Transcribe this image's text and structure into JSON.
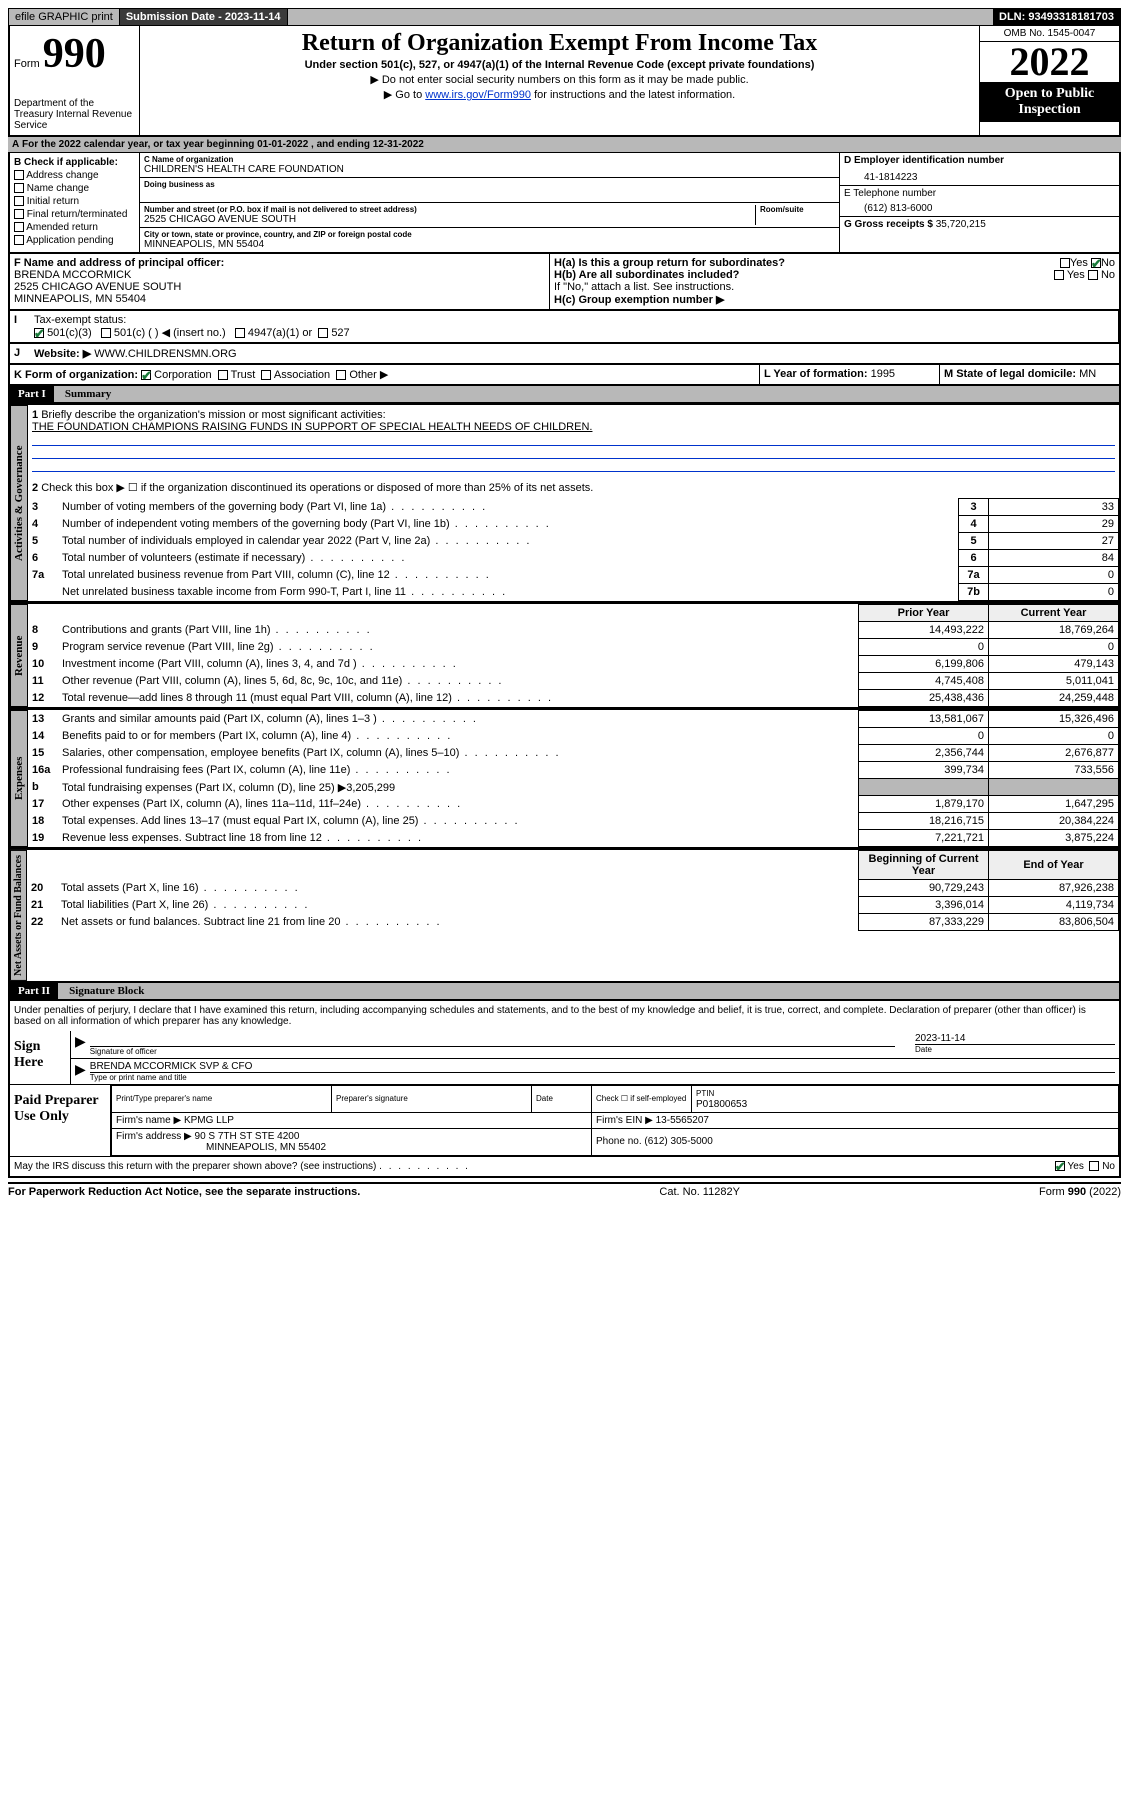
{
  "topbar": {
    "efile": "efile GRAPHIC print",
    "submission_label": "Submission Date - 2023-11-14",
    "dln": "DLN: 93493318181703"
  },
  "header": {
    "form_word": "Form",
    "form_num": "990",
    "title": "Return of Organization Exempt From Income Tax",
    "subtitle": "Under section 501(c), 527, or 4947(a)(1) of the Internal Revenue Code (except private foundations)",
    "note1": "▶ Do not enter social security numbers on this form as it may be made public.",
    "note2_prefix": "▶ Go to ",
    "note2_link": "www.irs.gov/Form990",
    "note2_suffix": " for instructions and the latest information.",
    "omb": "OMB No. 1545-0047",
    "year": "2022",
    "open": "Open to Public Inspection",
    "dept": "Department of the Treasury Internal Revenue Service"
  },
  "lineA": "For the 2022 calendar year, or tax year beginning 01-01-2022   , and ending 12-31-2022",
  "sectionB": {
    "label": "B Check if applicable:",
    "opts": [
      "Address change",
      "Name change",
      "Initial return",
      "Final return/terminated",
      "Amended return",
      "Application pending"
    ]
  },
  "sectionC": {
    "name_label": "C Name of organization",
    "name": "CHILDREN'S HEALTH CARE FOUNDATION",
    "dba_label": "Doing business as",
    "street_label": "Number and street (or P.O. box if mail is not delivered to street address)",
    "room_label": "Room/suite",
    "street": "2525 CHICAGO AVENUE SOUTH",
    "city_label": "City or town, state or province, country, and ZIP or foreign postal code",
    "city": "MINNEAPOLIS, MN  55404"
  },
  "sectionD": {
    "label": "D Employer identification number",
    "value": "41-1814223"
  },
  "sectionE": {
    "label": "E Telephone number",
    "value": "(612) 813-6000"
  },
  "sectionG": {
    "label": "G Gross receipts $",
    "value": "35,720,215"
  },
  "sectionF": {
    "label": "F  Name and address of principal officer:",
    "name": "BRENDA MCCORMICK",
    "street": "2525 CHICAGO AVENUE SOUTH",
    "city": "MINNEAPOLIS, MN  55404"
  },
  "sectionH": {
    "a_label": "H(a)  Is this a group return for subordinates?",
    "a_yes": "Yes",
    "a_no": "No",
    "b_label": "H(b)  Are all subordinates included?",
    "b_note": "If \"No,\" attach a list. See instructions.",
    "c_label": "H(c)  Group exemption number ▶"
  },
  "sectionI": {
    "label": "Tax-exempt status:",
    "opt1": "501(c)(3)",
    "opt2": "501(c) (  ) ◀ (insert no.)",
    "opt3": "4947(a)(1) or",
    "opt4": "527"
  },
  "sectionJ": {
    "label": "Website: ▶",
    "value": "WWW.CHILDRENSMN.ORG"
  },
  "sectionK": {
    "label": "K Form of organization:",
    "opts": [
      "Corporation",
      "Trust",
      "Association",
      "Other ▶"
    ]
  },
  "sectionL": {
    "label": "L Year of formation:",
    "value": "1995"
  },
  "sectionM": {
    "label": "M State of legal domicile:",
    "value": "MN"
  },
  "part1": {
    "header": "Part I",
    "title": "Summary",
    "q1_label": "Briefly describe the organization's mission or most significant activities:",
    "q1_text": "THE FOUNDATION CHAMPIONS RAISING FUNDS IN SUPPORT OF SPECIAL HEALTH NEEDS OF CHILDREN.",
    "q2": "Check this box ▶ ☐  if the organization discontinued its operations or disposed of more than 25% of its net assets.",
    "sides": [
      "Activities & Governance",
      "Revenue",
      "Expenses",
      "Net Assets or Fund Balances"
    ],
    "col_prior": "Prior Year",
    "col_current": "Current Year",
    "col_begin": "Beginning of Current Year",
    "col_end": "End of Year",
    "rows_gov": [
      {
        "n": "3",
        "t": "Number of voting members of the governing body (Part VI, line 1a)",
        "box": "3",
        "v": "33"
      },
      {
        "n": "4",
        "t": "Number of independent voting members of the governing body (Part VI, line 1b)",
        "box": "4",
        "v": "29"
      },
      {
        "n": "5",
        "t": "Total number of individuals employed in calendar year 2022 (Part V, line 2a)",
        "box": "5",
        "v": "27"
      },
      {
        "n": "6",
        "t": "Total number of volunteers (estimate if necessary)",
        "box": "6",
        "v": "84"
      },
      {
        "n": "7a",
        "t": "Total unrelated business revenue from Part VIII, column (C), line 12",
        "box": "7a",
        "v": "0"
      },
      {
        "n": "",
        "t": "Net unrelated business taxable income from Form 990-T, Part I, line 11",
        "box": "7b",
        "v": "0"
      }
    ],
    "rows_rev": [
      {
        "n": "8",
        "t": "Contributions and grants (Part VIII, line 1h)",
        "p": "14,493,222",
        "c": "18,769,264"
      },
      {
        "n": "9",
        "t": "Program service revenue (Part VIII, line 2g)",
        "p": "0",
        "c": "0"
      },
      {
        "n": "10",
        "t": "Investment income (Part VIII, column (A), lines 3, 4, and 7d )",
        "p": "6,199,806",
        "c": "479,143"
      },
      {
        "n": "11",
        "t": "Other revenue (Part VIII, column (A), lines 5, 6d, 8c, 9c, 10c, and 11e)",
        "p": "4,745,408",
        "c": "5,011,041"
      },
      {
        "n": "12",
        "t": "Total revenue—add lines 8 through 11 (must equal Part VIII, column (A), line 12)",
        "p": "25,438,436",
        "c": "24,259,448"
      }
    ],
    "rows_exp": [
      {
        "n": "13",
        "t": "Grants and similar amounts paid (Part IX, column (A), lines 1–3 )",
        "p": "13,581,067",
        "c": "15,326,496"
      },
      {
        "n": "14",
        "t": "Benefits paid to or for members (Part IX, column (A), line 4)",
        "p": "0",
        "c": "0"
      },
      {
        "n": "15",
        "t": "Salaries, other compensation, employee benefits (Part IX, column (A), lines 5–10)",
        "p": "2,356,744",
        "c": "2,676,877"
      },
      {
        "n": "16a",
        "t": "Professional fundraising fees (Part IX, column (A), line 11e)",
        "p": "399,734",
        "c": "733,556"
      },
      {
        "n": "b",
        "t": "Total fundraising expenses (Part IX, column (D), line 25) ▶3,205,299",
        "p": "",
        "c": ""
      },
      {
        "n": "17",
        "t": "Other expenses (Part IX, column (A), lines 11a–11d, 11f–24e)",
        "p": "1,879,170",
        "c": "1,647,295"
      },
      {
        "n": "18",
        "t": "Total expenses. Add lines 13–17 (must equal Part IX, column (A), line 25)",
        "p": "18,216,715",
        "c": "20,384,224"
      },
      {
        "n": "19",
        "t": "Revenue less expenses. Subtract line 18 from line 12",
        "p": "7,221,721",
        "c": "3,875,224"
      }
    ],
    "rows_net": [
      {
        "n": "20",
        "t": "Total assets (Part X, line 16)",
        "p": "90,729,243",
        "c": "87,926,238"
      },
      {
        "n": "21",
        "t": "Total liabilities (Part X, line 26)",
        "p": "3,396,014",
        "c": "4,119,734"
      },
      {
        "n": "22",
        "t": "Net assets or fund balances. Subtract line 21 from line 20",
        "p": "87,333,229",
        "c": "83,806,504"
      }
    ]
  },
  "part2": {
    "header": "Part II",
    "title": "Signature Block",
    "declaration": "Under penalties of perjury, I declare that I have examined this return, including accompanying schedules and statements, and to the best of my knowledge and belief, it is true, correct, and complete. Declaration of preparer (other than officer) is based on all information of which preparer has any knowledge.",
    "sign_here": "Sign Here",
    "sig_officer_label": "Signature of officer",
    "sig_date_label": "Date",
    "sig_date": "2023-11-14",
    "officer_name": "BRENDA MCCORMICK SVP & CFO",
    "officer_name_label": "Type or print name and title",
    "paid": "Paid Preparer Use Only",
    "prep_name_label": "Print/Type preparer's name",
    "prep_sig_label": "Preparer's signature",
    "date_label": "Date",
    "check_if": "Check ☐ if self-employed",
    "ptin_label": "PTIN",
    "ptin": "P01800653",
    "firm_name_label": "Firm's name    ▶",
    "firm_name": "KPMG LLP",
    "firm_ein_label": "Firm's EIN ▶",
    "firm_ein": "13-5565207",
    "firm_addr_label": "Firm's address ▶",
    "firm_addr1": "90 S 7TH ST STE 4200",
    "firm_addr2": "MINNEAPOLIS, MN  55402",
    "phone_label": "Phone no.",
    "phone": "(612) 305-5000",
    "discuss": "May the IRS discuss this return with the preparer shown above? (see instructions)",
    "yes": "Yes",
    "no": "No"
  },
  "footer": {
    "left": "For Paperwork Reduction Act Notice, see the separate instructions.",
    "mid": "Cat. No. 11282Y",
    "right": "Form 990 (2022)"
  }
}
